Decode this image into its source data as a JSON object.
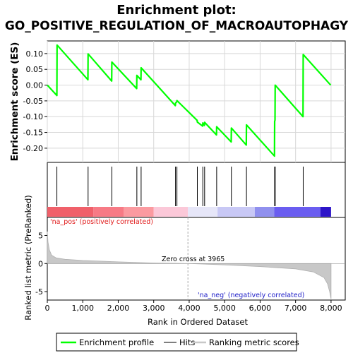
{
  "title_line1": "Enrichment plot:",
  "title_line2": "GO_POSITIVE_REGULATION_OF_MACROAUTOPHAGY",
  "chart_data": {
    "type": "line",
    "es_panel": {
      "ylabel": "Enrichment score (ES)",
      "ylim": [
        -0.245,
        0.14
      ],
      "yticks": [
        0.1,
        0.05,
        0.0,
        -0.05,
        -0.1,
        -0.15,
        -0.2
      ],
      "ytick_labels": [
        "0.10",
        "0.05",
        "0.00",
        "-0.05",
        "-0.10",
        "-0.15",
        "-0.20"
      ],
      "grid": true,
      "series": [
        {
          "name": "Enrichment profile",
          "color": "#00ff00",
          "x": [
            0,
            270,
            275,
            1145,
            1150,
            1815,
            1820,
            2520,
            2525,
            2640,
            2645,
            3610,
            3615,
            3650,
            3655,
            4225,
            4230,
            4380,
            4385,
            4430,
            4435,
            4770,
            4775,
            5185,
            5190,
            5610,
            5615,
            6405,
            6410,
            6420,
            6425,
            7210,
            7215,
            7990
          ],
          "y": [
            0.0,
            -0.033,
            0.127,
            0.017,
            0.099,
            0.013,
            0.073,
            -0.011,
            0.031,
            0.017,
            0.055,
            -0.065,
            -0.057,
            -0.053,
            -0.049,
            -0.112,
            -0.117,
            -0.13,
            -0.12,
            -0.128,
            -0.118,
            -0.158,
            -0.132,
            -0.18,
            -0.136,
            -0.19,
            -0.126,
            -0.225,
            -0.115,
            -0.111,
            0.0,
            -0.1,
            0.097,
            0.0
          ]
        }
      ]
    },
    "hits_panel": {
      "series_name": "Hits",
      "hits": [
        270,
        1150,
        1820,
        2525,
        2645,
        3615,
        3655,
        4230,
        4385,
        4435,
        4775,
        5190,
        5615,
        6410,
        6425,
        7215
      ]
    },
    "ranked_panel": {
      "ylabel": "Ranked list metric (PreRanked)",
      "xlabel": "Rank in Ordered Dataset",
      "xlim": [
        0,
        8400
      ],
      "ylim": [
        -6.5,
        8.2
      ],
      "yticks": [
        5,
        0,
        -5
      ],
      "ytick_labels": [
        "5",
        "0",
        "-5"
      ],
      "xticks": [
        0,
        1000,
        2000,
        3000,
        4000,
        5000,
        6000,
        7000,
        8000
      ],
      "xtick_labels": [
        "0",
        "1,000",
        "2,000",
        "3,000",
        "4,000",
        "5,000",
        "6,000",
        "7,000",
        "8,000"
      ],
      "series_name": "Ranking metric scores",
      "x": [
        0,
        20,
        60,
        120,
        250,
        500,
        1000,
        2000,
        3000,
        3965,
        5000,
        6000,
        7000,
        7500,
        7800,
        7900,
        7960,
        8000
      ],
      "y": [
        5.7,
        3.8,
        2.4,
        1.5,
        1.0,
        0.75,
        0.55,
        0.3,
        0.1,
        0.0,
        -0.25,
        -0.55,
        -0.95,
        -1.5,
        -2.5,
        -3.6,
        -5.0,
        -6.3
      ],
      "zero_cross_label": "Zero cross at 3965",
      "zero_cross_x": 3965,
      "pos_label": "'na_pos' (positively correlated)",
      "neg_label": "'na_neg' (negatively correlated)"
    },
    "legend": {
      "entries": [
        {
          "name": "Enrichment profile",
          "color": "#00ff00"
        },
        {
          "name": "Hits",
          "color": "#000000"
        },
        {
          "name": "Ranking metric scores",
          "color": "#c8c8c8"
        }
      ],
      "placement": "bottom"
    },
    "gradient_bar": {
      "segments": [
        {
          "from": 0,
          "to": 1300,
          "color": "#f0606a"
        },
        {
          "from": 1300,
          "to": 2150,
          "color": "#f77a85"
        },
        {
          "from": 2150,
          "to": 3000,
          "color": "#fb9aa0"
        },
        {
          "from": 3000,
          "to": 3965,
          "color": "#fbc8d8"
        },
        {
          "from": 3965,
          "to": 4800,
          "color": "#e6e6f8"
        },
        {
          "from": 4800,
          "to": 5850,
          "color": "#c8c8f5"
        },
        {
          "from": 5850,
          "to": 6400,
          "color": "#9090ee"
        },
        {
          "from": 6400,
          "to": 7700,
          "color": "#6a5df0"
        },
        {
          "from": 7700,
          "to": 8000,
          "color": "#2d15c8"
        }
      ]
    }
  }
}
